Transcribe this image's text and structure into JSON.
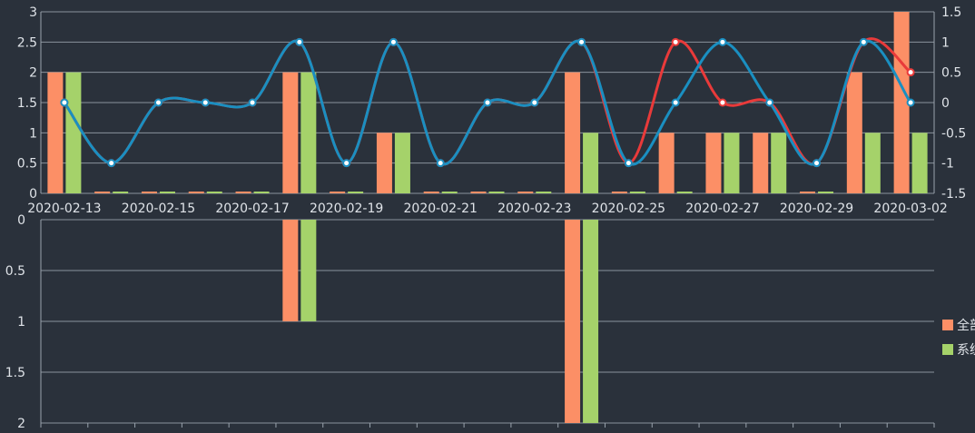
{
  "colors": {
    "background": "#2a313b",
    "grid": "#9aa3ad",
    "text": "#dfe3e8",
    "bar_all": "#fc8f66",
    "bar_system": "#a5d26a",
    "line_red": "#e93a3a",
    "line_blue": "#1a8fc1",
    "marker_fill": "#ffffff"
  },
  "legend": {
    "items": [
      {
        "label": "全部",
        "color": "#fc8f66"
      },
      {
        "label": "系统",
        "color": "#a5d26a"
      }
    ]
  },
  "chart_data": [
    {
      "type": "bar",
      "categories": [
        "2020-02-13",
        "2020-02-14",
        "2020-02-15",
        "2020-02-16",
        "2020-02-17",
        "2020-02-18",
        "2020-02-19",
        "2020-02-20",
        "2020-02-21",
        "2020-02-22",
        "2020-02-23",
        "2020-02-24",
        "2020-02-25",
        "2020-02-26",
        "2020-02-27",
        "2020-02-28",
        "2020-02-29",
        "2020-03-01",
        "2020-03-02"
      ],
      "x_tick_labels": [
        "2020-02-13",
        "2020-02-15",
        "2020-02-17",
        "2020-02-19",
        "2020-02-21",
        "2020-02-23",
        "2020-02-25",
        "2020-02-27",
        "2020-02-29",
        "2020-03-02"
      ],
      "ylim": [
        0,
        3
      ],
      "y_ticks": [
        "0",
        "0.5",
        "1",
        "1.5",
        "2",
        "2.5",
        "3"
      ],
      "y2lim": [
        -1.5,
        1.5
      ],
      "y2_ticks": [
        "-1.5",
        "-1",
        "-0.5",
        "0",
        "0.5",
        "1",
        "1.5"
      ],
      "grid": true,
      "series": [
        {
          "name": "全部",
          "values": [
            2,
            0,
            0,
            0,
            0,
            2,
            0,
            1,
            0,
            0,
            0,
            2,
            0,
            1,
            1,
            1,
            0,
            2,
            3
          ]
        },
        {
          "name": "系统",
          "values": [
            2,
            0,
            0,
            0,
            0,
            2,
            0,
            1,
            0,
            0,
            0,
            1,
            0,
            0,
            1,
            1,
            0,
            1,
            1
          ]
        }
      ],
      "lines": [
        {
          "color": "red",
          "values": [
            0,
            -1,
            0,
            0,
            0,
            1,
            -1,
            1,
            -1,
            0,
            0,
            1,
            -1,
            1,
            0,
            0,
            -1,
            1,
            0.5
          ]
        },
        {
          "color": "blue",
          "values": [
            0,
            -1,
            0,
            0,
            0,
            1,
            -1,
            1,
            -1,
            0,
            0,
            1,
            -1,
            0,
            1,
            0,
            -1,
            1,
            0
          ]
        }
      ]
    },
    {
      "type": "bar",
      "orientation": "inverted",
      "categories": [
        "2020-02-13",
        "2020-02-14",
        "2020-02-15",
        "2020-02-16",
        "2020-02-17",
        "2020-02-18",
        "2020-02-19",
        "2020-02-20",
        "2020-02-21",
        "2020-02-22",
        "2020-02-23",
        "2020-02-24",
        "2020-02-25",
        "2020-02-26",
        "2020-02-27",
        "2020-02-28",
        "2020-02-29",
        "2020-03-01",
        "2020-03-02"
      ],
      "ylim": [
        0,
        2
      ],
      "y_ticks": [
        "0",
        "0.5",
        "1",
        "1.5",
        "2"
      ],
      "grid": true,
      "series": [
        {
          "name": "全部",
          "values": [
            0,
            0,
            0,
            0,
            0,
            1,
            0,
            0,
            0,
            0,
            0,
            2,
            0,
            0,
            0,
            0,
            0,
            0,
            0
          ]
        },
        {
          "name": "系统",
          "values": [
            0,
            0,
            0,
            0,
            0,
            1,
            0,
            0,
            0,
            0,
            0,
            2,
            0,
            0,
            0,
            0,
            0,
            0,
            0
          ]
        }
      ]
    }
  ]
}
